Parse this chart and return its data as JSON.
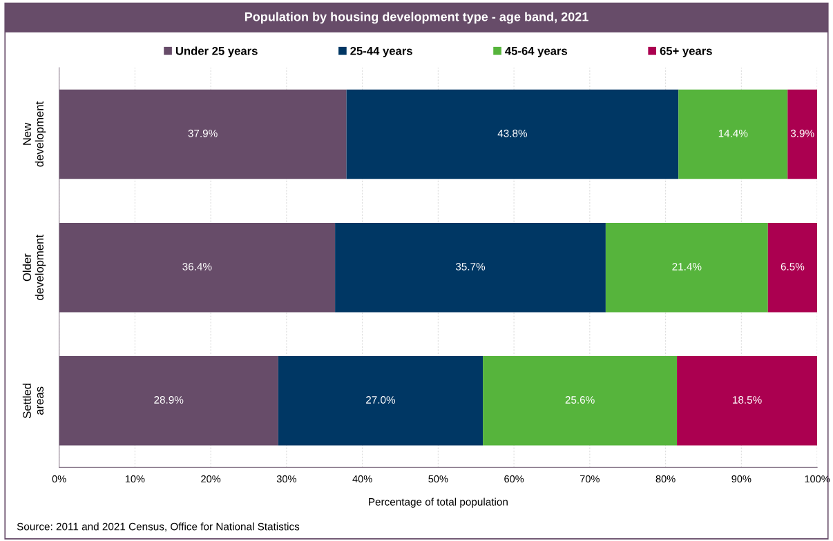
{
  "chart_data": {
    "type": "bar",
    "orientation": "horizontal",
    "stacked": true,
    "title": "Population by housing development type - age band, 2021",
    "xlabel": "Percentage of total population",
    "categories": [
      "New\ndevelopment",
      "Older\ndevelopment",
      "Settled\nareas"
    ],
    "series": [
      {
        "name": "Under 25 years",
        "color": "#674c69",
        "values": [
          37.9,
          36.4,
          28.9
        ],
        "value_labels": [
          "37.9%",
          "36.4%",
          "28.9%"
        ]
      },
      {
        "name": "25-44 years",
        "color": "#003764",
        "values": [
          43.8,
          35.7,
          27.0
        ],
        "value_labels": [
          "43.8%",
          "35.7%",
          "27.0%"
        ]
      },
      {
        "name": "45-64 years",
        "color": "#56b43c",
        "values": [
          14.4,
          21.4,
          25.6
        ],
        "value_labels": [
          "14.4%",
          "21.4%",
          "25.6%"
        ]
      },
      {
        "name": "65+ years",
        "color": "#ab0050",
        "values": [
          3.9,
          6.5,
          18.5
        ],
        "value_labels": [
          "3.9%",
          "6.5%",
          "18.5%"
        ]
      }
    ],
    "xlim": [
      0,
      100
    ],
    "xticks": [
      {
        "value": 0,
        "label": "0%"
      },
      {
        "value": 10,
        "label": "10%"
      },
      {
        "value": 20,
        "label": "20%"
      },
      {
        "value": 30,
        "label": "30%"
      },
      {
        "value": 40,
        "label": "40%"
      },
      {
        "value": 50,
        "label": "50%"
      },
      {
        "value": 60,
        "label": "60%"
      },
      {
        "value": 70,
        "label": "70%"
      },
      {
        "value": 80,
        "label": "80%"
      },
      {
        "value": 90,
        "label": "90%"
      },
      {
        "value": 100,
        "label": "100%"
      }
    ],
    "grid": "x",
    "legend": "top",
    "annotations": [
      "Source: 2011 and 2021 Census, Office for National Statistics"
    ]
  }
}
